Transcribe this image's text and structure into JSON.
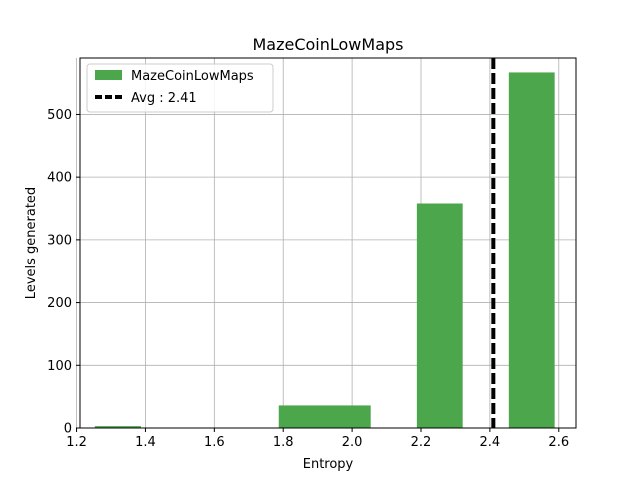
{
  "chart_data": {
    "type": "bar",
    "title": "MazeCoinLowMaps",
    "xlabel": "Entropy",
    "ylabel": "Levels generated",
    "xlim": [
      1.21,
      2.65
    ],
    "ylim": [
      0,
      590
    ],
    "xticks": [
      1.2,
      1.4,
      1.6,
      1.8,
      2.0,
      2.2,
      2.4,
      2.6
    ],
    "xtick_labels": [
      "1.2",
      "1.4",
      "1.6",
      "1.8",
      "2.0",
      "2.2",
      "2.4",
      "2.6"
    ],
    "yticks": [
      0,
      100,
      200,
      300,
      400,
      500
    ],
    "ytick_labels": [
      "0",
      "100",
      "200",
      "300",
      "400",
      "500"
    ],
    "grid": true,
    "legend_position": "top-left",
    "series": [
      {
        "name": "MazeCoinLowMaps",
        "color": "#4ca64c",
        "bins": [
          {
            "x0": 1.253,
            "x1": 1.387,
            "value": 3
          },
          {
            "x0": 1.787,
            "x1": 2.054,
            "value": 36
          },
          {
            "x0": 2.188,
            "x1": 2.321,
            "value": 358
          },
          {
            "x0": 2.455,
            "x1": 2.588,
            "value": 567
          }
        ]
      }
    ],
    "average": {
      "label": "Avg : 2.41",
      "value": 2.41,
      "color": "#000000",
      "style": "dashed"
    }
  }
}
